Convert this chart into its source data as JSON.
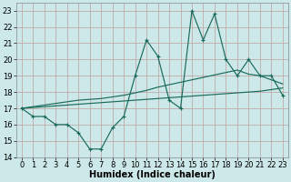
{
  "x": [
    0,
    1,
    2,
    3,
    4,
    5,
    6,
    7,
    8,
    9,
    10,
    11,
    12,
    13,
    14,
    15,
    16,
    17,
    18,
    19,
    20,
    21,
    22,
    23
  ],
  "y_main": [
    17,
    16.5,
    16.5,
    16,
    16,
    15.5,
    14.5,
    14.5,
    15.8,
    16.5,
    19,
    21.2,
    20.2,
    17.5,
    17.0,
    23.0,
    21.2,
    22.8,
    20.0,
    19.0,
    20.0,
    19.0,
    19.0,
    17.8
  ],
  "y_upper": [
    17.0,
    17.1,
    17.2,
    17.3,
    17.4,
    17.5,
    17.55,
    17.6,
    17.7,
    17.8,
    17.95,
    18.1,
    18.3,
    18.45,
    18.6,
    18.75,
    18.9,
    19.05,
    19.2,
    19.35,
    19.1,
    19.0,
    18.75,
    18.5
  ],
  "y_lower": [
    17.0,
    17.05,
    17.1,
    17.15,
    17.2,
    17.25,
    17.3,
    17.35,
    17.4,
    17.45,
    17.5,
    17.55,
    17.6,
    17.65,
    17.7,
    17.75,
    17.8,
    17.85,
    17.9,
    17.95,
    18.0,
    18.05,
    18.15,
    18.25
  ],
  "bg_color": "#cce8e8",
  "grid_color": "#c0aaaa",
  "line_color": "#1a6b5a",
  "xlabel": "Humidex (Indice chaleur)",
  "xlabel_fontsize": 7,
  "tick_fontsize": 6,
  "xlim": [
    -0.5,
    23.5
  ],
  "ylim": [
    14,
    23.5
  ],
  "yticks": [
    14,
    15,
    16,
    17,
    18,
    19,
    20,
    21,
    22,
    23
  ],
  "xticks": [
    0,
    1,
    2,
    3,
    4,
    5,
    6,
    7,
    8,
    9,
    10,
    11,
    12,
    13,
    14,
    15,
    16,
    17,
    18,
    19,
    20,
    21,
    22,
    23
  ]
}
